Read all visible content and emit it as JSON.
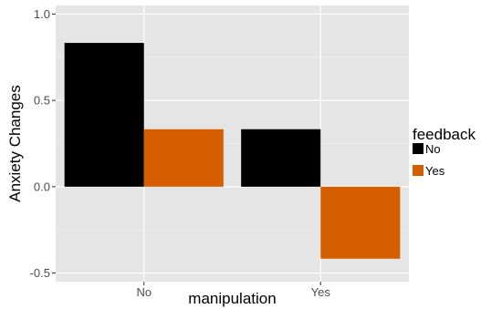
{
  "chart_data": {
    "type": "bar",
    "title": "",
    "xlabel": "manipulation",
    "ylabel": "Anxiety Changes",
    "categories": [
      "No",
      "Yes"
    ],
    "series": [
      {
        "name": "No",
        "values": [
          0.833,
          0.333
        ],
        "color": "#000000"
      },
      {
        "name": "Yes",
        "values": [
          0.333,
          -0.417
        ],
        "color": "#d55e00"
      }
    ],
    "ylim": [
      -0.55,
      1.05
    ],
    "yticks": [
      -0.5,
      0.0,
      0.5,
      1.0
    ],
    "ytick_labels": [
      "-0.5",
      "0.0",
      "0.5",
      "1.0"
    ],
    "grid": true,
    "panel_background": "#e5e5e5",
    "legend": {
      "title": "feedback",
      "placement": "right"
    }
  }
}
